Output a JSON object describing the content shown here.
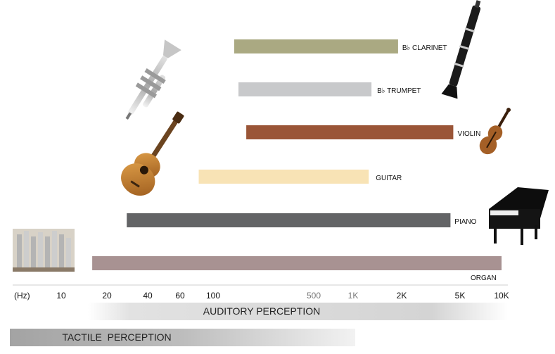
{
  "chart_data": {
    "type": "bar",
    "orientation": "horizontal-range",
    "x_scale": "log",
    "x_unit_label": "(Hz)",
    "x_ticks": [
      {
        "value": 10,
        "label": "10"
      },
      {
        "value": 20,
        "label": "20"
      },
      {
        "value": 40,
        "label": "40"
      },
      {
        "value": 60,
        "label": "60"
      },
      {
        "value": 100,
        "label": "100"
      },
      {
        "value": 500,
        "label": "500",
        "muted": true
      },
      {
        "value": 1000,
        "label": "1K",
        "muted": true
      },
      {
        "value": 2000,
        "label": "2K"
      },
      {
        "value": 5000,
        "label": "5K"
      },
      {
        "value": 10000,
        "label": "10K"
      }
    ],
    "series": [
      {
        "name": "B♭ CLARINET",
        "range": [
          140,
          1900
        ],
        "color": "#aaa982",
        "icon": "clarinet-icon"
      },
      {
        "name": "B♭ TRUMPET",
        "range": [
          150,
          1300
        ],
        "color": "#c8c9cb",
        "icon": "trumpet-icon"
      },
      {
        "name": "VIOLIN",
        "range": [
          170,
          4500
        ],
        "color": "#9a5537",
        "icon": "violin-icon"
      },
      {
        "name": "GUITAR",
        "range": [
          80,
          1250
        ],
        "color": "#f8e3b5",
        "icon": "guitar-icon"
      },
      {
        "name": "PIANO",
        "range": [
          28,
          4300
        ],
        "color": "#636466",
        "icon": "piano-icon"
      },
      {
        "name": "ORGAN",
        "range": [
          16,
          10000
        ],
        "color": "#a89292",
        "icon": "organ-icon"
      }
    ],
    "perception_bands": [
      {
        "label": "AUDITORY PERCEPTION",
        "range": [
          20,
          10000
        ]
      },
      {
        "label": "TACTILE  PERCEPTION",
        "range": [
          7,
          1000
        ]
      }
    ]
  }
}
